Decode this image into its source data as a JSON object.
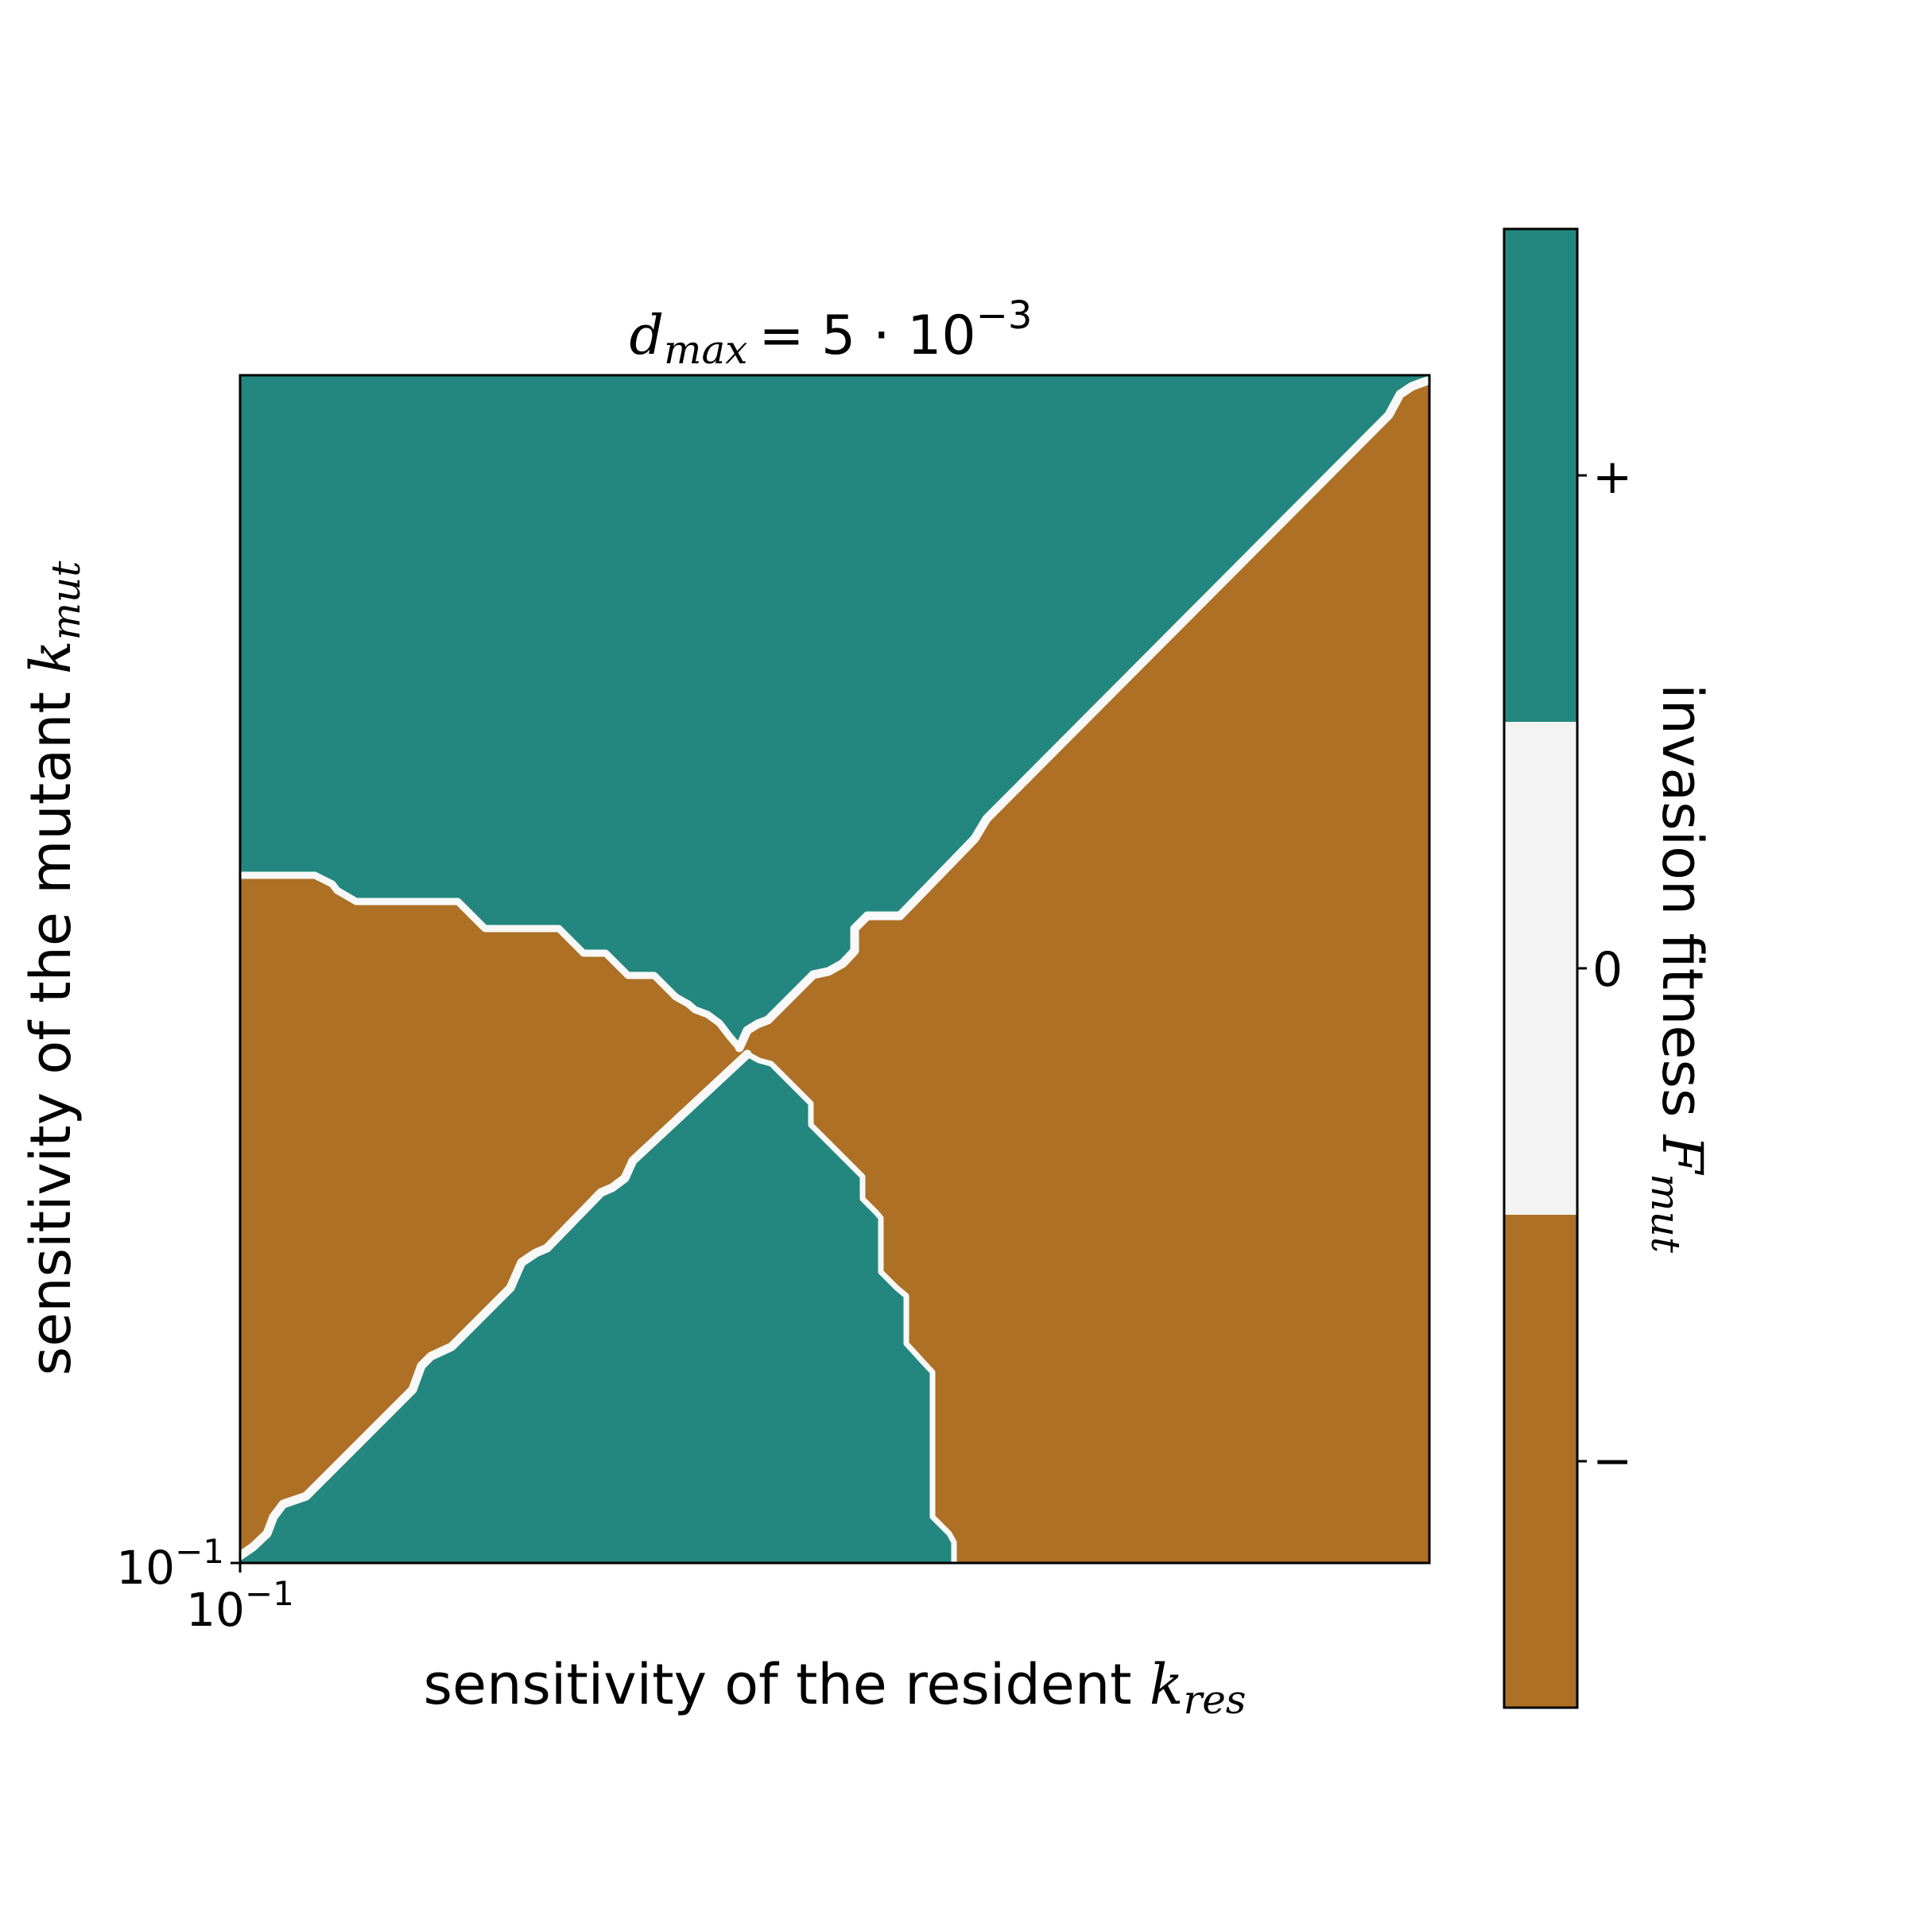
{
  "chart_data": {
    "type": "heatmap",
    "title": {
      "main": "d",
      "sub": "max",
      "eq": "= 5 · 10",
      "sup": "−3"
    },
    "xlabel": {
      "text": "sensitivity of the resident ",
      "var": "k",
      "sub": "res"
    },
    "ylabel": {
      "text": "sensitivity of the mutant ",
      "var": "k",
      "sub": "mut"
    },
    "x_tick": {
      "base": "10",
      "exp": "−1"
    },
    "y_tick": {
      "base": "10",
      "exp": "−1"
    },
    "grid": false,
    "colors": {
      "positive": "#23877f",
      "zero": "#f2f3f2",
      "negative": "#ad7024",
      "contour": "#f8f8f8",
      "frame": "#000000"
    },
    "colorbar": {
      "label": {
        "text": "invasion fitness ",
        "var": "F",
        "sub": "mut"
      },
      "ticks": [
        "+",
        "0",
        "−"
      ],
      "levels": [
        "positive",
        "zero",
        "negative"
      ]
    },
    "regions": [
      {
        "sign": "+",
        "name": "upper-left wedge"
      },
      {
        "sign": "+",
        "name": "lower wedge"
      },
      {
        "sign": "−",
        "name": "left wedge"
      },
      {
        "sign": "−",
        "name": "right wedge"
      }
    ]
  }
}
